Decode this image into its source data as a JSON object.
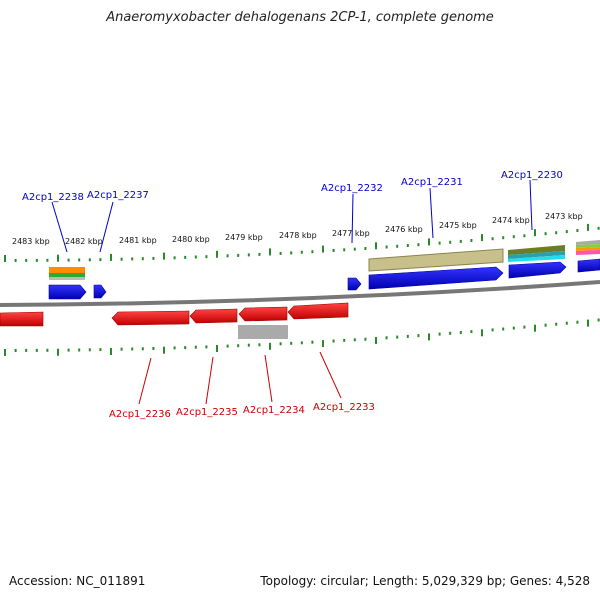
{
  "title": "Anaeromyxobacter dehalogenans 2CP-1, complete genome",
  "footer": {
    "accession": "Accession: NC_011891",
    "summary": "Topology: circular; Length: 5,029,329 bp; Genes: 4,528"
  },
  "colors": {
    "forward_cds": "#0000ee",
    "reverse_cds": "#ee0000",
    "backbone": "#777777",
    "ticks": "#2a8a2a",
    "label_forward": "#0000cc",
    "label_reverse": "#cc0000"
  },
  "scale_labels": [
    "2483 kbp",
    "2482 kbp",
    "2481 kbp",
    "2480 kbp",
    "2479 kbp",
    "2478 kbp",
    "2477 kbp",
    "2476 kbp",
    "2475 kbp",
    "2474 kbp",
    "2473 kbp"
  ],
  "forward_genes": [
    "A2cp1_2238",
    "A2cp1_2237",
    "A2cp1_2232",
    "A2cp1_2231",
    "A2cp1_2230"
  ],
  "reverse_genes": [
    "A2cp1_2236",
    "A2cp1_2235",
    "A2cp1_2234",
    "A2cp1_2233"
  ]
}
